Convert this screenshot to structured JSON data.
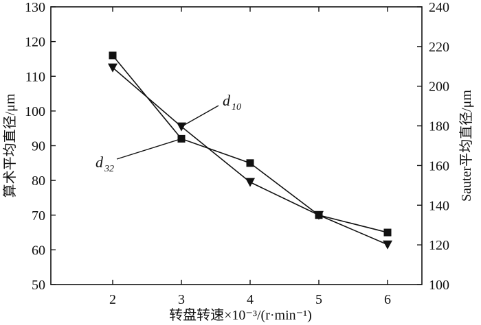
{
  "chart_data": {
    "type": "line",
    "x": [
      2,
      3,
      4,
      5,
      6
    ],
    "xlabel": "转盘转速×10⁻³/(r·min⁻¹)",
    "ylabel_left": "算术平均直径/μm",
    "ylabel_right": "Sauter平均直径/μm",
    "xlim": [
      1.1,
      6.5
    ],
    "ylim_left": [
      50,
      130
    ],
    "ylim_right": [
      100,
      240
    ],
    "xticks": [
      "2",
      "3",
      "4",
      "5",
      "6"
    ],
    "yticks_left": [
      "50",
      "60",
      "70",
      "80",
      "90",
      "100",
      "110",
      "120",
      "130"
    ],
    "yticks_right": [
      "100",
      "120",
      "140",
      "160",
      "180",
      "200",
      "220",
      "240"
    ],
    "series": [
      {
        "name": "d32",
        "axis": "left",
        "marker": "square",
        "values": [
          116,
          92,
          85,
          70,
          65
        ]
      },
      {
        "name": "d10",
        "axis": "left",
        "marker": "triangle-down",
        "values": [
          112.5,
          95.5,
          79.5,
          70,
          61.5
        ]
      }
    ],
    "annotations": [
      {
        "main": "d",
        "sub": "10"
      },
      {
        "main": "d",
        "sub": "32"
      }
    ]
  }
}
